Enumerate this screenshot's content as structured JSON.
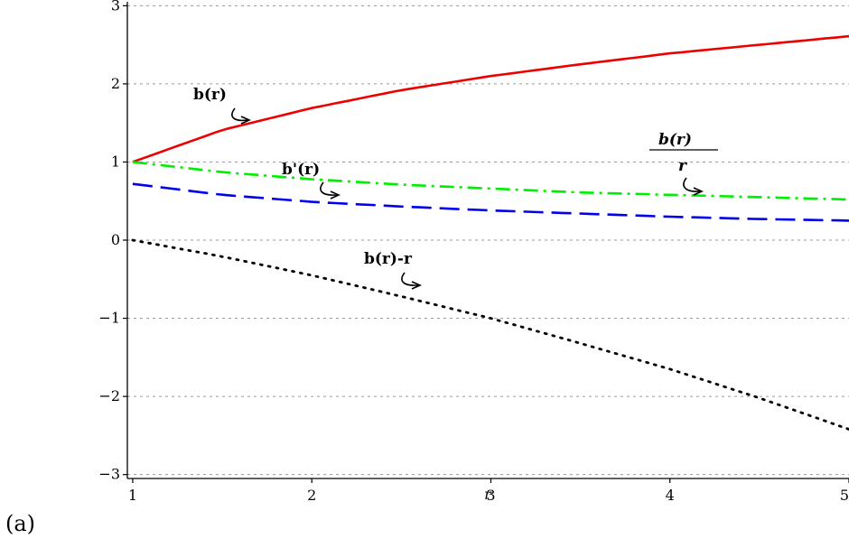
{
  "panel_label": "(a)",
  "chart_data": {
    "type": "line",
    "xlabel": "r",
    "ylabel": "",
    "xlim": [
      0.97,
      5.0
    ],
    "ylim": [
      -3.05,
      3.05
    ],
    "xticks": [
      1,
      2,
      3,
      4,
      5
    ],
    "yticks": [
      -3,
      -2,
      -1,
      0,
      1,
      2,
      3
    ],
    "xtick_labels": [
      "1",
      "2",
      "3",
      "4",
      "5"
    ],
    "ytick_labels": [
      "−3",
      "−2",
      "−1",
      "0",
      "1",
      "2",
      "3"
    ],
    "grid": "horizontal dotted",
    "x": [
      1.0,
      1.5,
      2.0,
      2.5,
      3.0,
      3.5,
      4.0,
      4.5,
      5.0
    ],
    "series": [
      {
        "name": "b(r)",
        "color": "#ee0000",
        "style": "solid",
        "values": [
          1.0,
          1.41,
          1.69,
          1.92,
          2.1,
          2.25,
          2.39,
          2.5,
          2.61
        ]
      },
      {
        "name": "b(r)/r",
        "color": "#00ee00",
        "style": "dashdot",
        "values": [
          1.0,
          0.87,
          0.78,
          0.71,
          0.66,
          0.61,
          0.58,
          0.55,
          0.52
        ]
      },
      {
        "name": "b'(r)",
        "color": "#0000ee",
        "style": "dash",
        "values": [
          0.72,
          0.58,
          0.49,
          0.43,
          0.38,
          0.34,
          0.3,
          0.27,
          0.25
        ]
      },
      {
        "name": "b(r)-r",
        "color": "#000000",
        "style": "dot",
        "values": [
          0.0,
          -0.21,
          -0.45,
          -0.72,
          -1.0,
          -1.32,
          -1.65,
          -2.02,
          -2.42
        ]
      }
    ],
    "annotations": [
      {
        "text": "b(r)",
        "target_series": "b(r)"
      },
      {
        "text": "b'(r)",
        "target_series": "b'(r)"
      },
      {
        "numerator": "b(r)",
        "denominator": "r",
        "target_series": "b(r)/r"
      },
      {
        "text": "b(r)-r",
        "target_series": "b(r)-r"
      }
    ]
  }
}
